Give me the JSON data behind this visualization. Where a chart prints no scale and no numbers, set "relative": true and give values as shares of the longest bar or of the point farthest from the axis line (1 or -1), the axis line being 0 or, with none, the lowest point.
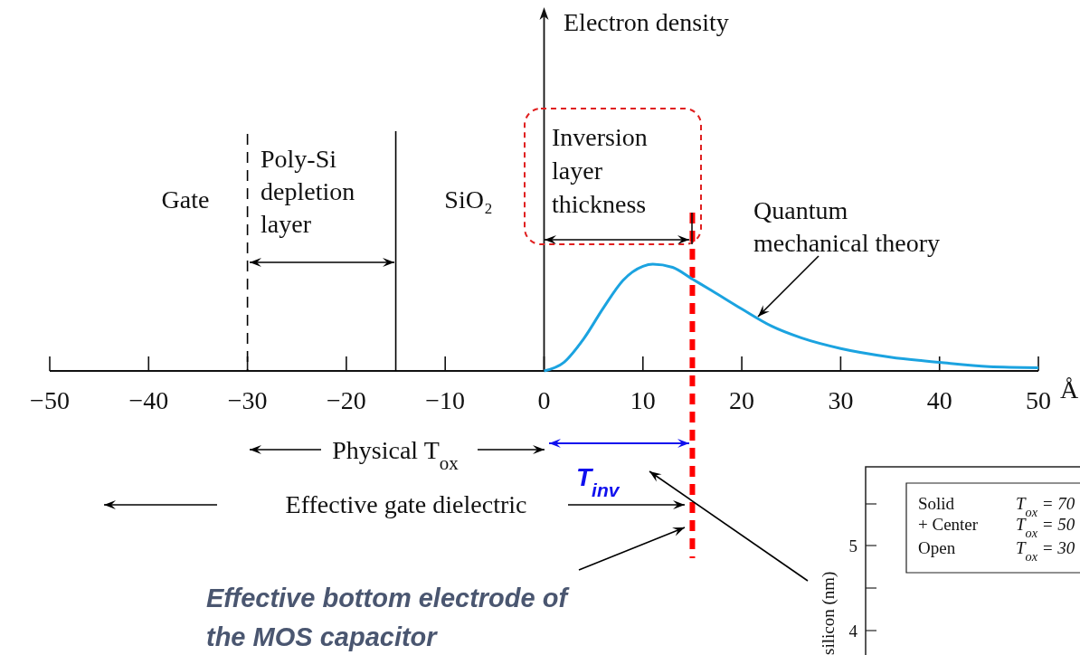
{
  "chart_data": {
    "type": "line",
    "relative": true,
    "xlabel": "Å",
    "x": [
      0,
      2,
      4,
      6,
      8,
      10,
      11,
      13,
      15,
      17,
      20,
      23,
      26,
      30,
      35,
      40,
      45,
      50
    ],
    "series": [
      {
        "color": "#1ba3e0",
        "values": [
          0,
          0.08,
          0.3,
          0.59,
          0.85,
          0.98,
          1,
          0.97,
          0.86,
          0.75,
          0.58,
          0.42,
          0.31,
          0.21,
          0.13,
          0.08,
          0.04,
          0.03
        ]
      }
    ],
    "xlim": [
      -50,
      50
    ],
    "xticks": [
      -50,
      -40,
      -30,
      -20,
      -10,
      0,
      10,
      20,
      30,
      40,
      50
    ],
    "grid": false,
    "marker": "none",
    "line_style": "solid",
    "ref_lines": [
      {
        "axis": "x",
        "value": -30,
        "color": "#000000",
        "line_style": "dashed"
      },
      {
        "axis": "x",
        "value": -15,
        "color": "#000000",
        "line_style": "solid"
      },
      {
        "axis": "x",
        "value": 15,
        "color": "#ff0000",
        "line_style": "dashed"
      }
    ],
    "annotations": [
      "Gate",
      "Poly-Si\ndepletion\nlayer",
      "SiO₂",
      "Inversion\nlayer\nthickness",
      "Quantum\nmechanical theory",
      "Physical T$_{ox}$",
      "Effective gate dielectric",
      "T$_{inv}$",
      "Effective bottom electrode of\nthe MOS capacitor",
      "Solid",
      "T$_{ox}$ = 70",
      "+ Center",
      "T$_{ox}$ = 50",
      "Open",
      "T$_{ox}$ = 30",
      "5",
      "4",
      "silicon (nm)",
      "Electron density"
    ]
  }
}
